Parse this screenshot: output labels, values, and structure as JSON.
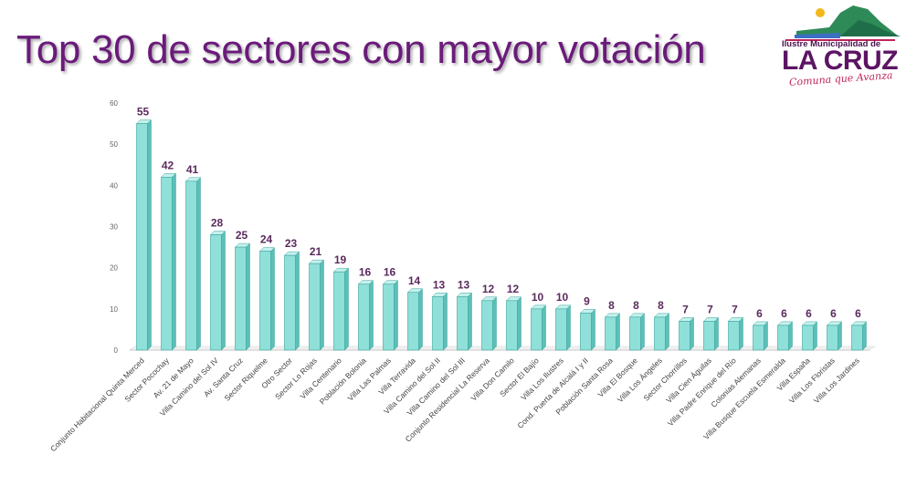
{
  "header": {
    "title": "Top 30 de sectores con mayor votación"
  },
  "logo": {
    "top_text": "Ilustre Municipalidad de",
    "main_text": "LA CRUZ",
    "tagline": "Comuna que Avanza"
  },
  "colors": {
    "title": "#6a1b7a",
    "bar_front": "#8fe0d9",
    "bar_side": "#5cbfb8",
    "bar_top": "#c4f1ec",
    "bar_stroke": "#3aa39c",
    "value_label": "#5a2a5e"
  },
  "chart_data": {
    "type": "bar",
    "categories": [
      "Conjunto Habitacional Quinta Merced",
      "Sector Pocochay",
      "Av. 21 de Mayo",
      "Villa Camino del Sol IV",
      "Av. Santa Cruz",
      "Sector Riquelme",
      "Otro Sector",
      "Sector Lo Rojas",
      "Villa Centenario",
      "Población Bolonia",
      "Villa Las Palmas",
      "Villa Terravida",
      "Villa Camino del Sol II",
      "Villa Camino del Sol III",
      "Conjunto Residencial La Reserva",
      "Villa Don Camilo",
      "Sector El Bajío",
      "Villa Los Ilustres",
      "Cond. Puerta de Alcalá I y II",
      "Población Santa Rosa",
      "Villa El Bosque",
      "Villa Los Ángeles",
      "Sector Chorrillos",
      "Villa Cien Águilas",
      "Villa Padre Enrique del Río",
      "Colonias Alemanas",
      "Villa Busque Escuela Esmeralda",
      "Villa España",
      "Villa Los Floristas",
      "Villa Los Jardines"
    ],
    "values": [
      55,
      42,
      41,
      28,
      25,
      24,
      23,
      21,
      19,
      16,
      16,
      14,
      13,
      13,
      12,
      12,
      10,
      10,
      9,
      8,
      8,
      8,
      7,
      7,
      7,
      6,
      6,
      6,
      6,
      6
    ],
    "ylim": [
      0,
      60
    ],
    "yticks": [
      "0",
      "10",
      "20",
      "30",
      "40",
      "50",
      "60"
    ],
    "grid": false,
    "data_labels": true
  }
}
